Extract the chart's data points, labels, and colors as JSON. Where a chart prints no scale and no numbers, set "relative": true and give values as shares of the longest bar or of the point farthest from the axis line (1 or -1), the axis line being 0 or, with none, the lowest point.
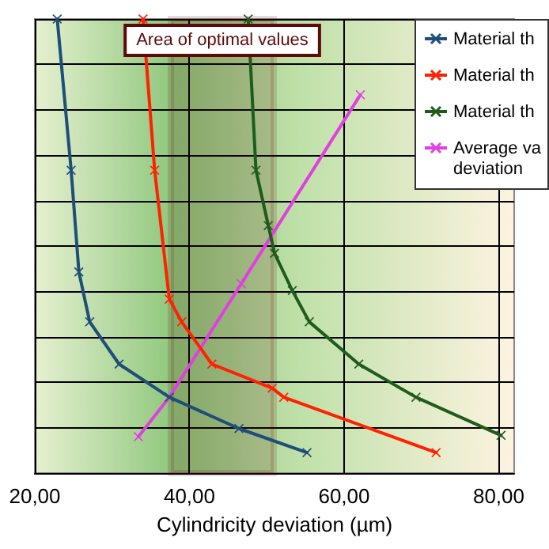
{
  "chart_data": {
    "type": "line",
    "xlabel": "Cylindricity deviation (µm)",
    "relative": true,
    "xlim": [
      20,
      82
    ],
    "xticks": [
      {
        "value": 20,
        "label": "20,00"
      },
      {
        "value": 40,
        "label": "40,00"
      },
      {
        "value": 60,
        "label": "60,00"
      },
      {
        "value": 80,
        "label": "80,00"
      }
    ],
    "tick_labels": "x",
    "grid": true,
    "legend": "top right",
    "marker": "cross",
    "line_style": "solid",
    "series": [
      {
        "name": "Material th",
        "color": "#1f4e79",
        "x": [
          22.9,
          24.7,
          25.7,
          27.1,
          30.9,
          37.4,
          46.4,
          55.2
        ],
        "values": [
          1,
          0.667,
          0.443,
          0.333,
          0.24,
          0.167,
          0.098,
          0.045
        ]
      },
      {
        "name": "Material th",
        "color": "#ff2200",
        "x": [
          34.0,
          35.5,
          37.4,
          39.0,
          42.9,
          50.7,
          52.2,
          71.9
        ],
        "values": [
          1,
          0.667,
          0.383,
          0.333,
          0.24,
          0.187,
          0.167,
          0.045
        ]
      },
      {
        "name": "Material th",
        "color": "#1e5c1e",
        "x": [
          47.6,
          48.6,
          50.2,
          51.0,
          53.3,
          55.5,
          61.9,
          69.3,
          80.3
        ],
        "values": [
          1,
          0.667,
          0.545,
          0.484,
          0.402,
          0.333,
          0.24,
          0.167,
          0.083
        ]
      },
      {
        "name": "Average va\ndeviation",
        "color": "#e040e0",
        "x": [
          33.4,
          37.4,
          46.7,
          62.1
        ],
        "values": [
          0.08,
          0.167,
          0.417,
          0.833
        ]
      }
    ],
    "bands": [
      {
        "axis": "x",
        "from": 37.6,
        "to": 50.9,
        "label": "Area of optimal values",
        "color": "#5c0a0a"
      }
    ]
  }
}
